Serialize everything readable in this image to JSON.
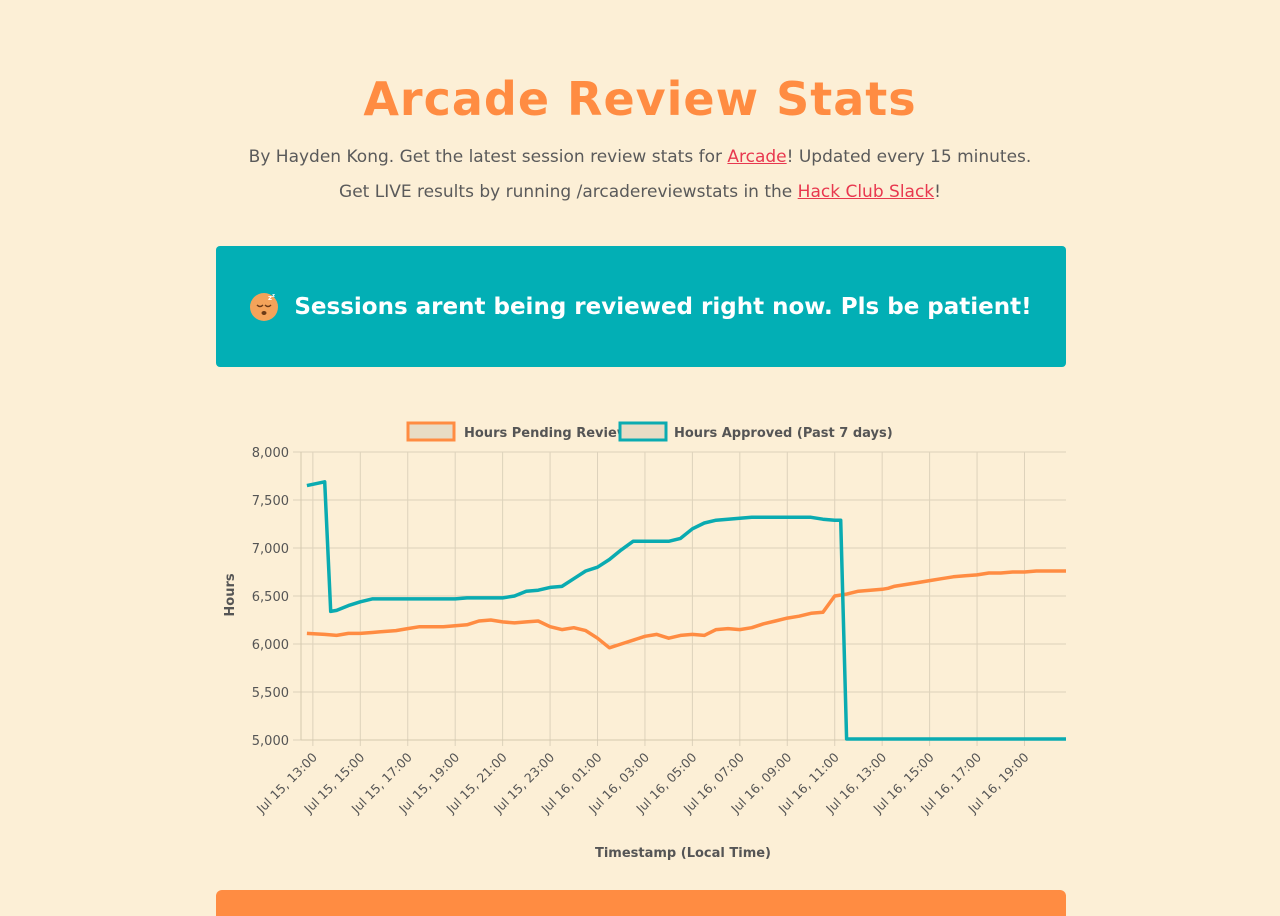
{
  "header": {
    "title": "Arcade Review Stats",
    "intro_part1": "By Hayden Kong. Get the latest session review stats for ",
    "intro_link1": "Arcade",
    "intro_part2": "! Updated every 15 minutes. Get LIVE results by running /arcadereviewstats in the ",
    "intro_link2": "Hack Club Slack",
    "intro_part3": "!"
  },
  "banner": {
    "text": "Sessions arent being reviewed right now. Pls be patient!",
    "icon": "sleeping-face-icon",
    "color": "#02afb5"
  },
  "colors": {
    "pending": "#ff8c42",
    "approved": "#0aabb1",
    "background": "#fcefd6",
    "link": "#e8384f"
  },
  "chart_data": {
    "type": "line",
    "xlabel": "Timestamp (Local Time)",
    "ylabel": "Hours",
    "ylim": [
      5000,
      8000
    ],
    "y_ticks": [
      "8,000",
      "7,500",
      "7,000",
      "6,500",
      "6,000",
      "5,500",
      "5,000"
    ],
    "x_ticks": [
      "Jul 15, 13:00",
      "Jul 15, 15:00",
      "Jul 15, 17:00",
      "Jul 15, 19:00",
      "Jul 15, 21:00",
      "Jul 15, 23:00",
      "Jul 16, 01:00",
      "Jul 16, 03:00",
      "Jul 16, 05:00",
      "Jul 16, 07:00",
      "Jul 16, 09:00",
      "Jul 16, 11:00",
      "Jul 16, 13:00",
      "Jul 16, 15:00",
      "Jul 16, 17:00",
      "Jul 16, 19:00"
    ],
    "x_unit": "hours since Jul 15, 13:00",
    "grid": true,
    "legend_position": "top",
    "series": [
      {
        "name": "Hours Pending Review",
        "color": "#ff8c42",
        "x": [
          -0.25,
          0.5,
          1,
          1.5,
          2,
          2.5,
          3,
          3.5,
          4,
          4.5,
          5,
          5.5,
          6,
          6.5,
          7,
          7.5,
          8,
          8.5,
          9,
          9.5,
          10,
          10.5,
          11,
          11.5,
          12,
          12.5,
          13,
          13.5,
          14,
          14.5,
          15,
          15.5,
          16,
          16.5,
          17,
          17.5,
          18,
          18.5,
          19,
          19.5,
          20,
          20.5,
          21,
          21.5,
          22,
          22.5,
          23,
          23.5,
          24,
          24.25,
          24.5,
          25,
          25.5,
          26,
          26.5,
          27,
          27.5,
          28,
          28.5,
          29,
          29.5,
          30,
          30.5,
          31,
          31.5,
          31.75
        ],
        "y": [
          6110,
          6100,
          6090,
          6110,
          6110,
          6120,
          6130,
          6140,
          6160,
          6180,
          6180,
          6180,
          6190,
          6200,
          6240,
          6250,
          6230,
          6220,
          6230,
          6240,
          6180,
          6150,
          6170,
          6140,
          6060,
          5960,
          6000,
          6040,
          6080,
          6100,
          6060,
          6090,
          6100,
          6090,
          6150,
          6160,
          6150,
          6170,
          6210,
          6240,
          6270,
          6290,
          6320,
          6330,
          6500,
          6520,
          6550,
          6560,
          6570,
          6580,
          6600,
          6620,
          6640,
          6660,
          6680,
          6700,
          6710,
          6720,
          6740,
          6740,
          6750,
          6750,
          6760,
          6760,
          6760,
          6760
        ]
      },
      {
        "name": "Hours Approved (Past 7 days)",
        "color": "#0aabb1",
        "x": [
          -0.25,
          0.5,
          0.75,
          1,
          1.5,
          2,
          2.5,
          3,
          3.5,
          4,
          4.5,
          5,
          5.5,
          6,
          6.5,
          7,
          7.5,
          8,
          8.5,
          9,
          9.5,
          10,
          10.5,
          11,
          11.5,
          12,
          12.5,
          13,
          13.5,
          14,
          14.5,
          15,
          15.5,
          16,
          16.5,
          17,
          17.5,
          18,
          18.5,
          19,
          19.5,
          20,
          20.5,
          21,
          21.5,
          22,
          22.25,
          22.5,
          23,
          23.5,
          24,
          24.5,
          25,
          25.5,
          26,
          26.5,
          27,
          27.5,
          28,
          28.5,
          29,
          29.5,
          30,
          30.5,
          31,
          31.5,
          31.75
        ],
        "y": [
          7650,
          7690,
          6340,
          6350,
          6400,
          6440,
          6470,
          6470,
          6470,
          6470,
          6470,
          6470,
          6470,
          6470,
          6480,
          6480,
          6480,
          6480,
          6500,
          6550,
          6560,
          6590,
          6600,
          6680,
          6760,
          6800,
          6880,
          6980,
          7070,
          7070,
          7070,
          7070,
          7100,
          7200,
          7260,
          7290,
          7300,
          7310,
          7320,
          7320,
          7320,
          7320,
          7320,
          7320,
          7300,
          7290,
          7290,
          5010,
          5010,
          5010,
          5010,
          5010,
          5010,
          5010,
          5010,
          5010,
          5010,
          5010,
          5010,
          5010,
          5010,
          5010,
          5010,
          5010,
          5010,
          5010,
          5010
        ]
      }
    ]
  }
}
